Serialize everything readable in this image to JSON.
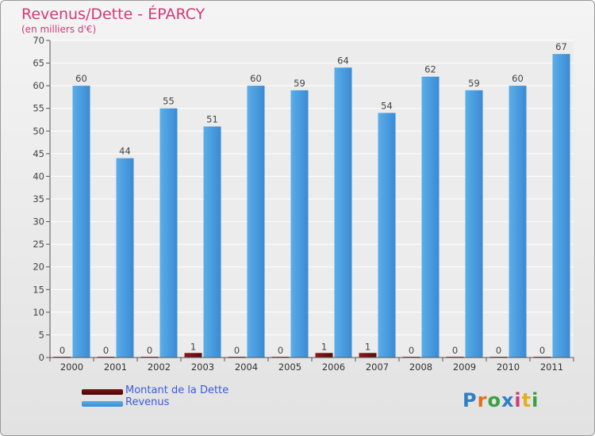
{
  "title": "Revenus/Dette - ÉPARCY",
  "subtitle": "(en milliers d'€)",
  "logo_text": "Proxiti",
  "colors": {
    "title": "#d03a78",
    "legend_text": "#3b5bd8",
    "debt": "#6b0f0f",
    "revenue": "#4a9fe0",
    "revenue_dark": "#2f7fc8",
    "axis_text": "#333333"
  },
  "chart_data": {
    "type": "bar",
    "title": "Revenus/Dette - ÉPARCY",
    "ylabel": "(en milliers d'€)",
    "xlabel": "",
    "ylim": [
      0,
      70
    ],
    "yticks": [
      0,
      5,
      10,
      15,
      20,
      25,
      30,
      35,
      40,
      45,
      50,
      55,
      60,
      65,
      70
    ],
    "categories": [
      "2000",
      "2001",
      "2002",
      "2003",
      "2004",
      "2005",
      "2006",
      "2007",
      "2008",
      "2009",
      "2010",
      "2011"
    ],
    "series": [
      {
        "name": "Montant de la Dette",
        "values": [
          0,
          0,
          0,
          1,
          0,
          0,
          1,
          1,
          0,
          0,
          0,
          0
        ]
      },
      {
        "name": "Revenus",
        "values": [
          60,
          44,
          55,
          51,
          60,
          59,
          64,
          54,
          62,
          59,
          60,
          67
        ]
      }
    ],
    "grid": true,
    "legend_position": "bottom-left"
  }
}
